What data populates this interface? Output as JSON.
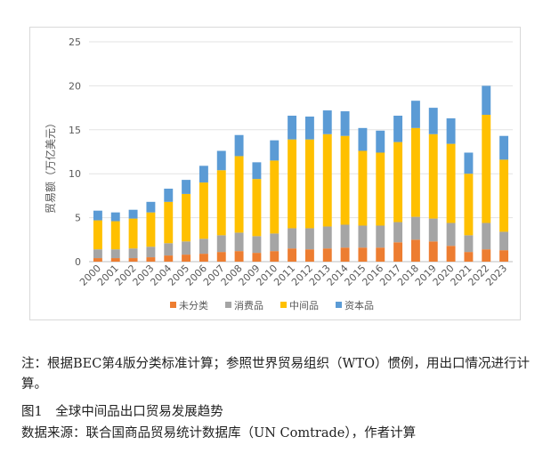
{
  "chart_data": {
    "type": "bar",
    "stacked": true,
    "title": "",
    "ylabel": "贸易额（万亿美元）",
    "xlabel": "",
    "ylim": [
      0,
      25
    ],
    "yticks": [
      0,
      5,
      10,
      15,
      20,
      25
    ],
    "grid": true,
    "legend_position": "bottom",
    "categories": [
      "2000",
      "2001",
      "2002",
      "2003",
      "2004",
      "2005",
      "2006",
      "2007",
      "2008",
      "2009",
      "2010",
      "2011",
      "2012",
      "2013",
      "2014",
      "2015",
      "2016",
      "2017",
      "2018",
      "2019",
      "2020",
      "2021",
      "2022",
      "2023"
    ],
    "series": [
      {
        "name": "未分类",
        "color": "#ed7d31",
        "values": [
          0.4,
          0.4,
          0.4,
          0.5,
          0.7,
          0.8,
          0.9,
          1.1,
          1.2,
          1.0,
          1.2,
          1.5,
          1.4,
          1.5,
          1.6,
          1.6,
          1.6,
          2.2,
          2.5,
          2.3,
          1.8,
          1.1,
          1.4,
          1.3
        ]
      },
      {
        "name": "消费品",
        "color": "#a5a5a5",
        "values": [
          1.0,
          1.0,
          1.1,
          1.2,
          1.4,
          1.5,
          1.7,
          1.9,
          2.1,
          1.9,
          2.0,
          2.3,
          2.4,
          2.5,
          2.6,
          2.5,
          2.5,
          2.3,
          2.6,
          2.6,
          2.6,
          1.9,
          3.0,
          2.1
        ]
      },
      {
        "name": "中间品",
        "color": "#ffc000",
        "values": [
          3.3,
          3.2,
          3.4,
          3.9,
          4.7,
          5.4,
          6.4,
          7.4,
          8.7,
          6.5,
          8.3,
          10.1,
          10.1,
          10.5,
          10.1,
          8.5,
          8.3,
          9.1,
          10.1,
          9.6,
          9.0,
          7.0,
          12.3,
          8.2
        ]
      },
      {
        "name": "资本品",
        "color": "#5b9bd5",
        "values": [
          1.1,
          1.0,
          1.0,
          1.2,
          1.5,
          1.6,
          1.9,
          2.2,
          2.4,
          1.9,
          2.3,
          2.7,
          2.6,
          2.7,
          2.8,
          2.6,
          2.5,
          3.0,
          3.1,
          3.0,
          2.9,
          2.4,
          3.3,
          2.7
        ]
      }
    ]
  },
  "captions": {
    "note": "注：根据BEC第4版分类标准计算；参照世界贸易组织（WTO）惯例，用出口情况进行计算。",
    "figure_title": "图1　全球中间品出口贸易发展趋势",
    "source": "数据来源：联合国商品贸易统计数据库（UN Comtrade），作者计算"
  }
}
